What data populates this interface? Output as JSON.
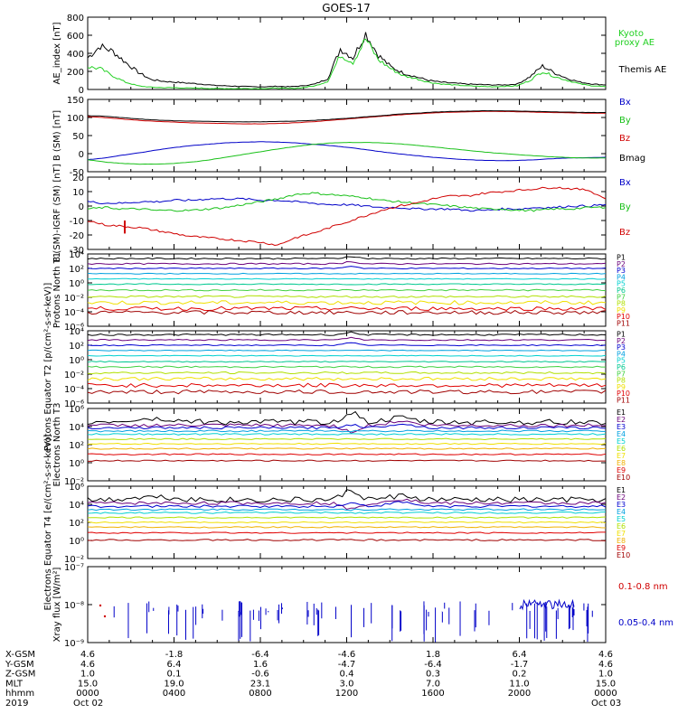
{
  "title": "GOES-17",
  "colors": {
    "black": "#000000",
    "red": "#d00000",
    "green": "#18c018",
    "blue": "#0000c8",
    "kyoto": "#22d022",
    "p_palette": [
      "#000000",
      "#6a007a",
      "#0000d0",
      "#00a0e0",
      "#00d0d0",
      "#00c890",
      "#40d040",
      "#b0e000",
      "#f0e000",
      "#f0b000",
      "#e00000",
      "#a00000"
    ]
  },
  "chart_data": [
    {
      "type": "line",
      "name": "ae",
      "ylabel": "AE_index [nT]",
      "yticks": [
        "800",
        "600",
        "400",
        "200",
        "0"
      ],
      "ylim": [
        0,
        800
      ],
      "legend": [
        {
          "label": "Kyoto proxy AE",
          "color": "#22d022"
        },
        {
          "label": "Themis AE",
          "color": "#000000"
        }
      ],
      "series": [
        {
          "name": "Themis AE",
          "color": "#000000",
          "values": [
            350,
            480,
            420,
            300,
            190,
            110,
            90,
            80,
            70,
            60,
            45,
            40,
            35,
            30,
            30,
            35,
            30,
            40,
            60,
            120,
            450,
            350,
            620,
            380,
            250,
            180,
            140,
            100,
            80,
            70,
            60,
            55,
            50,
            50,
            60,
            140,
            260,
            180,
            120,
            80,
            60,
            50
          ]
        },
        {
          "name": "Kyoto proxy AE",
          "color": "#22d022",
          "values": [
            250,
            230,
            150,
            80,
            40,
            25,
            20,
            20,
            15,
            15,
            10,
            10,
            10,
            10,
            10,
            15,
            10,
            20,
            40,
            90,
            380,
            300,
            560,
            330,
            230,
            150,
            120,
            80,
            60,
            50,
            40,
            35,
            30,
            35,
            40,
            100,
            200,
            140,
            100,
            60,
            40,
            30
          ]
        }
      ]
    },
    {
      "type": "line",
      "name": "b_sm",
      "ylabel": "B (SM) [nT]",
      "yticks": [
        "150",
        "100",
        "50",
        "0",
        "-50"
      ],
      "ylim": [
        -60,
        150
      ],
      "legend": [
        {
          "label": "Bx",
          "color": "#0000c8"
        },
        {
          "label": "By",
          "color": "#18c018"
        },
        {
          "label": "Bz",
          "color": "#d00000"
        },
        {
          "label": "Bmag",
          "color": "#000000"
        }
      ],
      "series": [
        {
          "name": "Bx",
          "color": "#0000c8",
          "values": [
            -25,
            -20,
            -12,
            -5,
            3,
            10,
            16,
            20,
            24,
            26,
            27,
            26,
            24,
            20,
            16,
            11,
            5,
            -2,
            -8,
            -13,
            -18,
            -22,
            -25,
            -27,
            -28,
            -27,
            -25,
            -22,
            -20,
            -19,
            -18
          ]
        },
        {
          "name": "By",
          "color": "#18c018",
          "values": [
            -25,
            -32,
            -36,
            -38,
            -38,
            -36,
            -32,
            -26,
            -18,
            -10,
            -2,
            6,
            13,
            19,
            23,
            25,
            25,
            24,
            21,
            17,
            12,
            7,
            2,
            -3,
            -7,
            -11,
            -14,
            -17,
            -19,
            -20,
            -20
          ]
        },
        {
          "name": "Bz",
          "color": "#d00000",
          "values": [
            100,
            97,
            93,
            89,
            86,
            84,
            82,
            81,
            80,
            79,
            79,
            80,
            82,
            85,
            89,
            93,
            97,
            101,
            105,
            108,
            111,
            113,
            114,
            115,
            115,
            114,
            113,
            112,
            111,
            110,
            110
          ]
        },
        {
          "name": "Bmag",
          "color": "#000000",
          "values": [
            103,
            101,
            97,
            93,
            90,
            88,
            87,
            86,
            85,
            85,
            85,
            86,
            87,
            89,
            92,
            95,
            99,
            103,
            107,
            110,
            113,
            115,
            116,
            117,
            117,
            116,
            115,
            114,
            113,
            112,
            112
          ]
        }
      ]
    },
    {
      "type": "line",
      "name": "b_residual",
      "ylabel": "B (SM)-IGRF (SM) [nT]",
      "yticks": [
        "20",
        "10",
        "0",
        "-10",
        "-20",
        "-30"
      ],
      "ylim": [
        -30,
        20
      ],
      "legend": [
        {
          "label": "Bx",
          "color": "#0000c8"
        },
        {
          "label": "By",
          "color": "#18c018"
        },
        {
          "label": "Bz",
          "color": "#d00000"
        }
      ],
      "series": [
        {
          "name": "Bx",
          "color": "#0000c8",
          "values": [
            3,
            2,
            2,
            3,
            3,
            4,
            4,
            5,
            5,
            5,
            4,
            4,
            3,
            2,
            1,
            1,
            0,
            -1,
            -1,
            -2,
            -2,
            -2,
            -3,
            -3,
            -2,
            -2,
            -1,
            -1,
            0,
            0,
            1
          ]
        },
        {
          "name": "By",
          "color": "#18c018",
          "values": [
            -2,
            -1,
            -2,
            -2,
            -3,
            -3,
            -3,
            -2,
            -1,
            1,
            3,
            5,
            8,
            9,
            8,
            7,
            6,
            4,
            3,
            2,
            1,
            0,
            -1,
            -2,
            -2,
            -3,
            -3,
            -2,
            -2,
            -1,
            -1
          ]
        },
        {
          "name": "Bz",
          "color": "#d00000",
          "values": [
            -10,
            -13,
            -14,
            -15,
            -17,
            -19,
            -21,
            -22,
            -23,
            -24,
            -25,
            -27,
            -22,
            -19,
            -15,
            -11,
            -7,
            -3,
            0,
            2,
            5,
            7,
            7,
            9,
            10,
            11,
            12,
            13,
            12,
            11,
            5
          ]
        }
      ]
    },
    {
      "type": "line",
      "name": "protons_t1",
      "ylabel": "Protons North T1",
      "yticks": [
        "10⁴",
        "10²",
        "10⁰",
        "10⁻²",
        "10⁻⁴",
        "10⁻⁶"
      ],
      "ylog": [
        -6,
        5
      ],
      "legend": [
        {
          "label": "P1"
        },
        {
          "label": "P2"
        },
        {
          "label": "P3"
        },
        {
          "label": "P4"
        },
        {
          "label": "P5"
        },
        {
          "label": "P6"
        },
        {
          "label": "P7"
        },
        {
          "label": "P8"
        },
        {
          "label": "P9"
        },
        {
          "label": "P10"
        },
        {
          "label": "P11"
        }
      ],
      "levels_log": [
        4.3,
        3.5,
        2.8,
        2.0,
        1.2,
        0.4,
        -0.5,
        -1.5,
        -2.4,
        -3.3,
        -3.9
      ],
      "noise": [
        0.1,
        0.1,
        0.08,
        0.06,
        0.06,
        0.08,
        0.12,
        0.15,
        0.3,
        0.3,
        0.3
      ]
    },
    {
      "type": "line",
      "name": "protons_t2",
      "ylabel": "Protons Equator T2 [p/(cm²-s-sr-keV)]",
      "yticks": [
        "10⁴",
        "10²",
        "10⁰",
        "10⁻²",
        "10⁻⁴",
        "10⁻⁶"
      ],
      "ylog": [
        -7,
        4
      ],
      "legend": [
        {
          "label": "P1"
        },
        {
          "label": "P2"
        },
        {
          "label": "P3"
        },
        {
          "label": "P4"
        },
        {
          "label": "P5"
        },
        {
          "label": "P6"
        },
        {
          "label": "P7"
        },
        {
          "label": "P8"
        },
        {
          "label": "P9"
        },
        {
          "label": "P10"
        },
        {
          "label": "P11"
        }
      ],
      "levels_log": [
        3.4,
        2.6,
        1.8,
        1.0,
        0.2,
        -0.7,
        -1.5,
        -2.4,
        -3.3,
        -4.3,
        -5.3
      ],
      "noise": [
        0.12,
        0.1,
        0.08,
        0.06,
        0.06,
        0.08,
        0.12,
        0.15,
        0.25,
        0.3,
        0.3
      ]
    },
    {
      "type": "line",
      "name": "electrons_t3",
      "ylabel": "Electrons North T3",
      "yticks": [
        "10⁶",
        "10⁴",
        "10²",
        "10⁰",
        "10⁻²"
      ],
      "ylog": [
        -3,
        6
      ],
      "legend": [
        {
          "label": "E1"
        },
        {
          "label": "E2"
        },
        {
          "label": "E3"
        },
        {
          "label": "E4"
        },
        {
          "label": "E5"
        },
        {
          "label": "E6"
        },
        {
          "label": "E7"
        },
        {
          "label": "E8"
        },
        {
          "label": "E9"
        },
        {
          "label": "E10"
        }
      ],
      "levels_log": [
        4.3,
        3.9,
        3.6,
        3.2,
        2.8,
        2.2,
        1.6,
        1.0,
        0.3,
        -0.5
      ],
      "noise": [
        0.35,
        0.2,
        0.15,
        0.1,
        0.1,
        0.08,
        0.08,
        0.08,
        0.08,
        0.08
      ]
    },
    {
      "type": "line",
      "name": "electrons_t4",
      "ylabel": "Electrons Equator T4 [e/(cm²-s-sr-keV)]",
      "yticks": [
        "10⁶",
        "10⁴",
        "10²",
        "10⁰",
        "10⁻²"
      ],
      "ylog": [
        -3,
        6
      ],
      "legend": [
        {
          "label": "E1"
        },
        {
          "label": "E2"
        },
        {
          "label": "E3"
        },
        {
          "label": "E4"
        },
        {
          "label": "E5"
        },
        {
          "label": "E6"
        },
        {
          "label": "E7"
        },
        {
          "label": "E8"
        },
        {
          "label": "E9"
        },
        {
          "label": "E10"
        }
      ],
      "levels_log": [
        4.3,
        3.9,
        3.5,
        3.1,
        2.7,
        2.1,
        1.5,
        0.9,
        0.2,
        -0.7
      ],
      "noise": [
        0.35,
        0.2,
        0.15,
        0.1,
        0.1,
        0.08,
        0.08,
        0.08,
        0.08,
        0.1
      ]
    },
    {
      "type": "line",
      "name": "xray",
      "ylabel": "Xray flux [W/m²]",
      "yticks": [
        "10⁻⁷",
        "10⁻⁸",
        "10⁻⁹"
      ],
      "ylog": [
        -9,
        -7
      ],
      "legend": [
        {
          "label": "0.1-0.8 nm",
          "color": "#d00000"
        },
        {
          "label": "0.05-0.4 nm",
          "color": "#0000c8"
        }
      ]
    }
  ],
  "xaxis": {
    "row_labels": [
      "X-GSM",
      "Y-GSM",
      "Z-GSM",
      "MLT",
      "hhmm",
      "2019"
    ],
    "columns": [
      [
        "4.6",
        "4.6",
        "1.0",
        "15.0",
        "0000",
        "Oct 02"
      ],
      [
        "-1.8",
        "6.4",
        "0.1",
        "19.0",
        "0400",
        ""
      ],
      [
        "-6.4",
        "1.6",
        "-0.6",
        "23.1",
        "0800",
        ""
      ],
      [
        "-4.6",
        "-4.7",
        "0.4",
        "3.0",
        "1200",
        ""
      ],
      [
        "1.8",
        "-6.4",
        "0.3",
        "7.0",
        "1600",
        ""
      ],
      [
        "6.4",
        "-1.7",
        "0.2",
        "11.0",
        "2000",
        ""
      ],
      [
        "4.6",
        "4.6",
        "1.0",
        "15.0",
        "0000",
        "Oct 03"
      ]
    ]
  }
}
